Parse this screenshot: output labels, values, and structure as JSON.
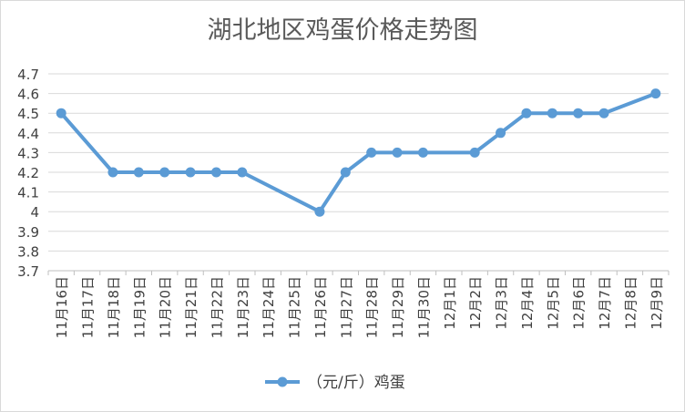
{
  "chart_data": {
    "type": "line",
    "title": "湖北地区鸡蛋价格走势图",
    "categories": [
      "11月16日",
      "11月17日",
      "11月18日",
      "11月19日",
      "11月20日",
      "11月21日",
      "11月22日",
      "11月23日",
      "11月24日",
      "11月25日",
      "11月26日",
      "11月27日",
      "11月28日",
      "11月29日",
      "11月30日",
      "12月1日",
      "12月2日",
      "12月3日",
      "12月4日",
      "12月5日",
      "12月6日",
      "12月7日",
      "12月8日",
      "12月9日"
    ],
    "series": [
      {
        "name": "（元/斤）鸡蛋",
        "points": [
          {
            "category": "11月16日",
            "value": 4.5
          },
          {
            "category": "11月18日",
            "value": 4.2
          },
          {
            "category": "11月19日",
            "value": 4.2
          },
          {
            "category": "11月20日",
            "value": 4.2
          },
          {
            "category": "11月21日",
            "value": 4.2
          },
          {
            "category": "11月22日",
            "value": 4.2
          },
          {
            "category": "11月23日",
            "value": 4.2
          },
          {
            "category": "11月26日",
            "value": 4.0
          },
          {
            "category": "11月27日",
            "value": 4.2
          },
          {
            "category": "11月28日",
            "value": 4.3
          },
          {
            "category": "11月29日",
            "value": 4.3
          },
          {
            "category": "11月30日",
            "value": 4.3
          },
          {
            "category": "12月2日",
            "value": 4.3
          },
          {
            "category": "12月3日",
            "value": 4.4
          },
          {
            "category": "12月4日",
            "value": 4.5
          },
          {
            "category": "12月5日",
            "value": 4.5
          },
          {
            "category": "12月6日",
            "value": 4.5
          },
          {
            "category": "12月7日",
            "value": 4.5
          },
          {
            "category": "12月9日",
            "value": 4.6
          }
        ]
      }
    ],
    "yticks": [
      "3.7",
      "3.8",
      "3.9",
      "4",
      "4.1",
      "4.2",
      "4.3",
      "4.4",
      "4.5",
      "4.6",
      "4.7"
    ],
    "ylim": [
      3.7,
      4.7
    ],
    "grid": true,
    "legend_position": "bottom",
    "colors": {
      "line": "#5b9bd5",
      "grid": "#d9d9d9",
      "axis": "#bfbfbf",
      "text": "#404040",
      "title": "#595959"
    }
  }
}
